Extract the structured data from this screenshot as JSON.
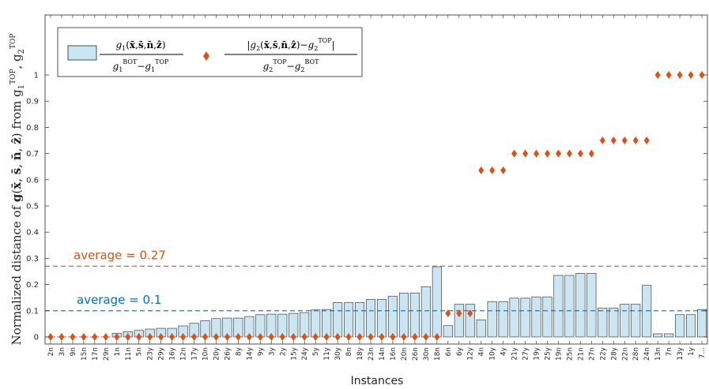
{
  "chart_data": {
    "type": "bar",
    "categories": [
      "2n",
      "3n",
      "9n",
      "15n",
      "17n",
      "29n",
      "1n",
      "11n",
      "5n",
      "23y",
      "29y",
      "16y",
      "12n",
      "17y",
      "10n",
      "20y",
      "26y",
      "8y",
      "14y",
      "9y",
      "3y",
      "2y",
      "15y",
      "24y",
      "5y",
      "11y",
      "30y",
      "8n",
      "18y",
      "23n",
      "14n",
      "16n",
      "20n",
      "26n",
      "30n",
      "18n",
      "6n",
      "6y",
      "12y",
      "4n",
      "10y",
      "4y",
      "21y",
      "27y",
      "19y",
      "25y",
      "19n",
      "25n",
      "21n",
      "27n",
      "22y",
      "28y",
      "22n",
      "28n",
      "24n",
      "13n",
      "7n",
      "13y",
      "1y",
      "7..."
    ],
    "series": [
      {
        "type": "bar",
        "values": [
          0,
          0,
          0,
          0,
          0,
          0,
          0.014,
          0.02,
          0.025,
          0.03,
          0.033,
          0.033,
          0.042,
          0.052,
          0.062,
          0.07,
          0.072,
          0.072,
          0.078,
          0.085,
          0.087,
          0.087,
          0.09,
          0.093,
          0.103,
          0.105,
          0.131,
          0.131,
          0.131,
          0.143,
          0.143,
          0.155,
          0.167,
          0.168,
          0.192,
          0.268,
          0.043,
          0.125,
          0.125,
          0.065,
          0.135,
          0.135,
          0.148,
          0.148,
          0.153,
          0.153,
          0.235,
          0.235,
          0.243,
          0.243,
          0.11,
          0.11,
          0.125,
          0.125,
          0.197,
          0.012,
          0.012,
          0.085,
          0.085,
          0.105
        ],
        "color": "#cbe6f3"
      },
      {
        "type": "marker",
        "values": [
          0,
          0,
          0,
          0,
          0,
          0,
          0,
          0,
          0,
          0,
          0,
          0,
          0,
          0,
          0,
          0,
          0,
          0,
          0,
          0,
          0,
          0,
          0,
          0,
          0,
          0,
          0,
          0,
          0,
          0,
          0,
          0,
          0,
          0,
          0,
          0,
          0.09,
          0.09,
          0.09,
          0.636,
          0.636,
          0.636,
          0.7,
          0.7,
          0.7,
          0.7,
          0.7,
          0.7,
          0.7,
          0.7,
          0.75,
          0.75,
          0.75,
          0.75,
          0.75,
          1,
          1,
          1,
          1,
          1
        ],
        "color": "#d95319"
      }
    ],
    "xlabel": "Instances",
    "ylabel": "Normalized distance of g(x̄, s̄, n̄, ẑ) from g₁ᵀᴼᴾ, g₂ᵀᴼᴾ",
    "ylim": [
      0,
      1.1
    ],
    "yticks": [
      0,
      0.1,
      0.2,
      0.3,
      0.4,
      0.5,
      0.6,
      0.7,
      0.8,
      0.9,
      1
    ],
    "grid": false,
    "legend_position": "top-left",
    "legend": [
      {
        "name": "g₁(x̄,s̄,n̄,ẑ) / (g₁ᴮᴼᵀ−g₁ᵀᴼᴾ)",
        "marker": "bar"
      },
      {
        "name": "|g₂(x̄,s̄,n̄,ẑ)−g₂ᵀᴼᴾ| / (g₂ᵀᴼᴾ−g₂ᴮᴼᵀ)",
        "marker": "diamond"
      }
    ],
    "reference_lines": [
      {
        "value": 0.27,
        "label": "average = 0.27",
        "color": "#d95319"
      },
      {
        "value": 0.1,
        "label": "average = 0.1",
        "color": "#0072bd"
      }
    ],
    "tick_color": "#262626"
  }
}
